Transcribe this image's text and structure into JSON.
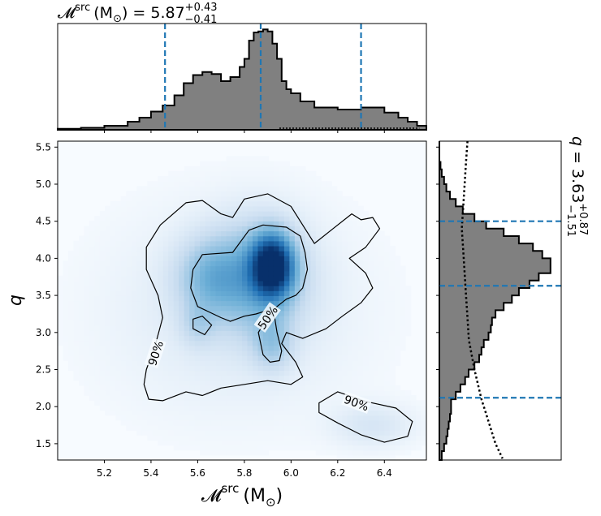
{
  "chart_data": {
    "type": "corner",
    "top_title": {
      "symbol": "𝓜",
      "sup": "src",
      "unit": "(M",
      "unit_sub": "⊙",
      "unit_close": ")",
      "eq": "= 5.87",
      "plus": "+0.43",
      "minus": "−0.41"
    },
    "right_title": {
      "symbol": "q",
      "eq": "= 3.63",
      "plus": "+0.87",
      "minus": "−1.51"
    },
    "xlabel": {
      "symbol": "𝓜",
      "sup": "src",
      "unit": "(M",
      "unit_sub": "⊙",
      "unit_close": ")"
    },
    "ylabel": "q",
    "xlim": [
      5.0,
      6.58
    ],
    "ylim": [
      1.28,
      5.58
    ],
    "xticks": [
      "5.2",
      "5.4",
      "5.6",
      "5.8",
      "6.0",
      "6.2",
      "6.4"
    ],
    "yticks": [
      "1.5",
      "2.0",
      "2.5",
      "3.0",
      "3.5",
      "4.0",
      "4.5",
      "5.0",
      "5.5"
    ],
    "contour_labels": [
      "50%",
      "90%",
      "90%"
    ],
    "colors": {
      "hist_fill": "#808080",
      "quantile": "#1f77b4",
      "density": "#08306b"
    },
    "mc_quantiles": [
      5.46,
      5.87,
      6.3
    ],
    "q_quantiles": [
      2.12,
      3.63,
      4.5
    ],
    "mc_hist": {
      "edges": [
        5.0,
        5.1,
        5.2,
        5.3,
        5.35,
        5.4,
        5.45,
        5.5,
        5.54,
        5.58,
        5.62,
        5.66,
        5.7,
        5.74,
        5.78,
        5.8,
        5.82,
        5.84,
        5.86,
        5.88,
        5.9,
        5.92,
        5.94,
        5.96,
        5.98,
        6.0,
        6.04,
        6.1,
        6.2,
        6.3,
        6.4,
        6.46,
        6.5,
        6.54,
        6.58
      ],
      "values": [
        0.01,
        0.02,
        0.04,
        0.08,
        0.12,
        0.18,
        0.24,
        0.34,
        0.46,
        0.54,
        0.57,
        0.55,
        0.48,
        0.52,
        0.62,
        0.7,
        0.88,
        0.96,
        0.97,
        0.99,
        0.97,
        0.85,
        0.7,
        0.48,
        0.4,
        0.36,
        0.28,
        0.22,
        0.2,
        0.22,
        0.17,
        0.12,
        0.08,
        0.04
      ]
    },
    "q_hist": {
      "edges": [
        1.28,
        1.4,
        1.5,
        1.6,
        1.7,
        1.8,
        1.9,
        2.0,
        2.1,
        2.2,
        2.3,
        2.4,
        2.5,
        2.6,
        2.7,
        2.8,
        2.9,
        3.0,
        3.1,
        3.2,
        3.3,
        3.4,
        3.5,
        3.6,
        3.7,
        3.8,
        3.9,
        4.0,
        4.1,
        4.2,
        4.3,
        4.4,
        4.5,
        4.6,
        4.7,
        4.8,
        4.9,
        5.0,
        5.1,
        5.2,
        5.3,
        5.58
      ],
      "values": [
        0.02,
        0.04,
        0.06,
        0.07,
        0.08,
        0.09,
        0.1,
        0.1,
        0.14,
        0.18,
        0.22,
        0.25,
        0.3,
        0.34,
        0.36,
        0.38,
        0.42,
        0.44,
        0.45,
        0.48,
        0.55,
        0.62,
        0.68,
        0.77,
        0.85,
        0.95,
        0.95,
        0.88,
        0.8,
        0.68,
        0.55,
        0.4,
        0.3,
        0.2,
        0.14,
        0.09,
        0.06,
        0.04,
        0.02,
        0.01,
        0.0
      ]
    },
    "q_prior": {
      "x": [
        0.04,
        0.038,
        0.036,
        0.034,
        0.032,
        0.034,
        0.036,
        0.038,
        0.04,
        0.042,
        0.046,
        0.05,
        0.055,
        0.06,
        0.065,
        0.07,
        0.075,
        0.08,
        0.085,
        0.09
      ],
      "y": [
        5.58,
        5.3,
        5.0,
        4.7,
        4.4,
        4.1,
        3.8,
        3.5,
        3.2,
        2.9,
        2.7,
        2.5,
        2.3,
        2.1,
        1.95,
        1.8,
        1.65,
        1.5,
        1.4,
        1.3
      ]
    },
    "density_blobs": [
      {
        "x": 5.92,
        "y": 3.9,
        "sx": 0.06,
        "sy": 0.28,
        "w": 1.0
      },
      {
        "x": 5.85,
        "y": 3.75,
        "sx": 0.14,
        "sy": 0.5,
        "w": 0.35
      },
      {
        "x": 5.65,
        "y": 3.75,
        "sx": 0.1,
        "sy": 0.35,
        "w": 0.25
      },
      {
        "x": 5.92,
        "y": 2.85,
        "sx": 0.06,
        "sy": 0.25,
        "w": 0.2
      },
      {
        "x": 5.6,
        "y": 3.1,
        "sx": 0.05,
        "sy": 0.2,
        "w": 0.12
      },
      {
        "x": 6.35,
        "y": 1.75,
        "sx": 0.12,
        "sy": 0.2,
        "w": 0.1
      },
      {
        "x": 5.75,
        "y": 3.3,
        "sx": 0.35,
        "sy": 0.9,
        "w": 0.08
      }
    ],
    "contour90_outer": [
      [
        5.44,
        4.45
      ],
      [
        5.55,
        4.75
      ],
      [
        5.62,
        4.78
      ],
      [
        5.7,
        4.6
      ],
      [
        5.75,
        4.55
      ],
      [
        5.8,
        4.8
      ],
      [
        5.9,
        4.87
      ],
      [
        6.0,
        4.7
      ],
      [
        6.05,
        4.45
      ],
      [
        6.1,
        4.2
      ],
      [
        6.18,
        4.4
      ],
      [
        6.26,
        4.6
      ],
      [
        6.3,
        4.52
      ],
      [
        6.35,
        4.55
      ],
      [
        6.38,
        4.4
      ],
      [
        6.32,
        4.15
      ],
      [
        6.25,
        4.0
      ],
      [
        6.32,
        3.8
      ],
      [
        6.35,
        3.6
      ],
      [
        6.3,
        3.4
      ],
      [
        6.22,
        3.22
      ],
      [
        6.15,
        3.05
      ],
      [
        6.05,
        2.92
      ],
      [
        5.98,
        3.0
      ],
      [
        5.96,
        2.85
      ],
      [
        6.02,
        2.6
      ],
      [
        6.05,
        2.4
      ],
      [
        6.0,
        2.3
      ],
      [
        5.9,
        2.35
      ],
      [
        5.8,
        2.3
      ],
      [
        5.7,
        2.25
      ],
      [
        5.62,
        2.15
      ],
      [
        5.55,
        2.2
      ],
      [
        5.45,
        2.08
      ],
      [
        5.39,
        2.1
      ],
      [
        5.37,
        2.3
      ],
      [
        5.38,
        2.5
      ],
      [
        5.42,
        2.85
      ],
      [
        5.45,
        3.2
      ],
      [
        5.43,
        3.5
      ],
      [
        5.38,
        3.85
      ],
      [
        5.38,
        4.15
      ],
      [
        5.44,
        4.45
      ]
    ],
    "contour50_main": [
      [
        5.58,
        3.85
      ],
      [
        5.62,
        4.05
      ],
      [
        5.75,
        4.08
      ],
      [
        5.82,
        4.38
      ],
      [
        5.88,
        4.45
      ],
      [
        5.98,
        4.42
      ],
      [
        6.04,
        4.3
      ],
      [
        6.06,
        4.08
      ],
      [
        6.07,
        3.85
      ],
      [
        6.05,
        3.6
      ],
      [
        6.02,
        3.5
      ],
      [
        5.98,
        3.45
      ],
      [
        5.94,
        3.35
      ],
      [
        5.9,
        3.2
      ],
      [
        5.86,
        3.0
      ],
      [
        5.88,
        2.7
      ],
      [
        5.91,
        2.6
      ],
      [
        5.95,
        2.62
      ],
      [
        5.96,
        2.75
      ],
      [
        5.94,
        3.0
      ],
      [
        5.93,
        3.2
      ],
      [
        5.9,
        3.3
      ],
      [
        5.85,
        3.25
      ],
      [
        5.8,
        3.22
      ],
      [
        5.74,
        3.15
      ],
      [
        5.7,
        3.2
      ],
      [
        5.6,
        3.35
      ],
      [
        5.57,
        3.6
      ],
      [
        5.58,
        3.85
      ]
    ],
    "contour_small": [
      [
        5.58,
        3.05
      ],
      [
        5.58,
        3.18
      ],
      [
        5.62,
        3.22
      ],
      [
        5.66,
        3.1
      ],
      [
        5.63,
        2.97
      ],
      [
        5.58,
        3.05
      ]
    ],
    "contour_tail": [
      [
        6.12,
        2.05
      ],
      [
        6.2,
        2.2
      ],
      [
        6.32,
        2.07
      ],
      [
        6.45,
        1.98
      ],
      [
        6.52,
        1.8
      ],
      [
        6.5,
        1.6
      ],
      [
        6.4,
        1.52
      ],
      [
        6.3,
        1.62
      ],
      [
        6.2,
        1.78
      ],
      [
        6.12,
        1.92
      ],
      [
        6.12,
        2.05
      ]
    ]
  }
}
